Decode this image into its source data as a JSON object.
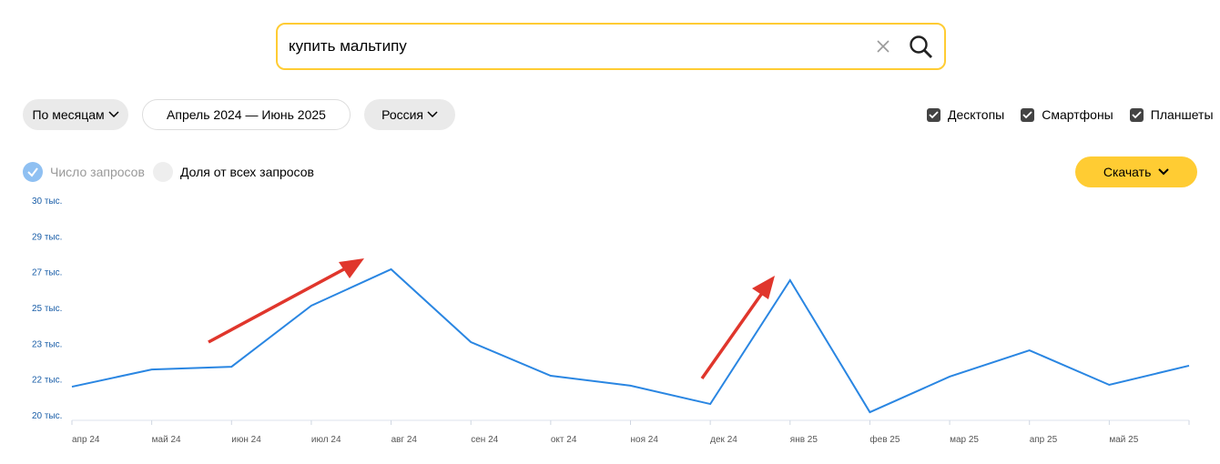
{
  "search": {
    "query": "купить мальтипу"
  },
  "filters": {
    "period": "По месяцам",
    "range": "Апрель 2024 — Июнь 2025",
    "region": "Россия"
  },
  "devices": [
    "Десктопы",
    "Смартфоны",
    "Планшеты"
  ],
  "metrics": [
    "Число запросов",
    "Доля от всех запросов"
  ],
  "download": "Скачать",
  "chart_data": {
    "type": "line",
    "categories": [
      "апр 24",
      "май 24",
      "июн 24",
      "июл 24",
      "авг 24",
      "сен 24",
      "окт 24",
      "ноя 24",
      "дек 24",
      "янв 25",
      "фев 25",
      "мар 25",
      "апр 25",
      "май 25",
      null
    ],
    "values": [
      21430,
      22250,
      22380,
      25280,
      27010,
      23550,
      21950,
      21480,
      20610,
      26490,
      20220,
      21910,
      23160,
      21520,
      22430
    ],
    "color": "#2a86e2",
    "ylim": [
      20050,
      30250
    ],
    "yticks": [
      {
        "value": 20050,
        "label": "20 тыс."
      },
      {
        "value": 21750,
        "label": "22 тыс."
      },
      {
        "value": 23450,
        "label": "23 тыс."
      },
      {
        "value": 25150,
        "label": "25 тыс."
      },
      {
        "value": 26850,
        "label": "27 тыс."
      },
      {
        "value": 28550,
        "label": "29 тыс."
      },
      {
        "value": 30250,
        "label": "30 тыс."
      }
    ]
  }
}
